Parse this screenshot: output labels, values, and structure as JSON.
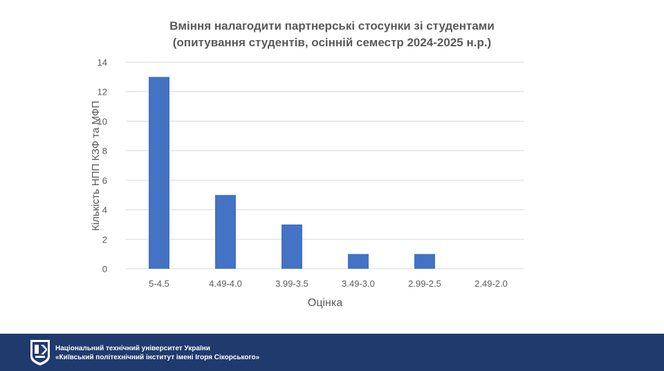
{
  "chart_data": {
    "type": "bar",
    "title": "Вміння налагодити партнерські стосунки зі студентами",
    "subtitle": "(опитування студентів, осінній семестр 2024-2025 н.р.)",
    "xlabel": "Оцінка",
    "ylabel": "Кількість НПП КЗФ та МФП",
    "categories": [
      "5-4.5",
      "4.49-4.0",
      "3.99-3.5",
      "3.49-3.0",
      "2.99-2.5",
      "2.49-2.0"
    ],
    "values": [
      13,
      5,
      3,
      1,
      1,
      0
    ],
    "ylim": [
      0,
      14
    ],
    "yticks": [
      0,
      2,
      4,
      6,
      8,
      10,
      12,
      14
    ],
    "grid": true,
    "legend": "none",
    "bar_color": "#4472c4",
    "grid_color": "#d9d9d9",
    "text_color": "#595959"
  },
  "footer": {
    "line1": "Національний технічний університет України",
    "line2": "«Київський політехнічний інститут імені Ігоря Сікорського»",
    "background": "#203a6e",
    "logo_icon": "kpi-shield-logo-icon"
  }
}
